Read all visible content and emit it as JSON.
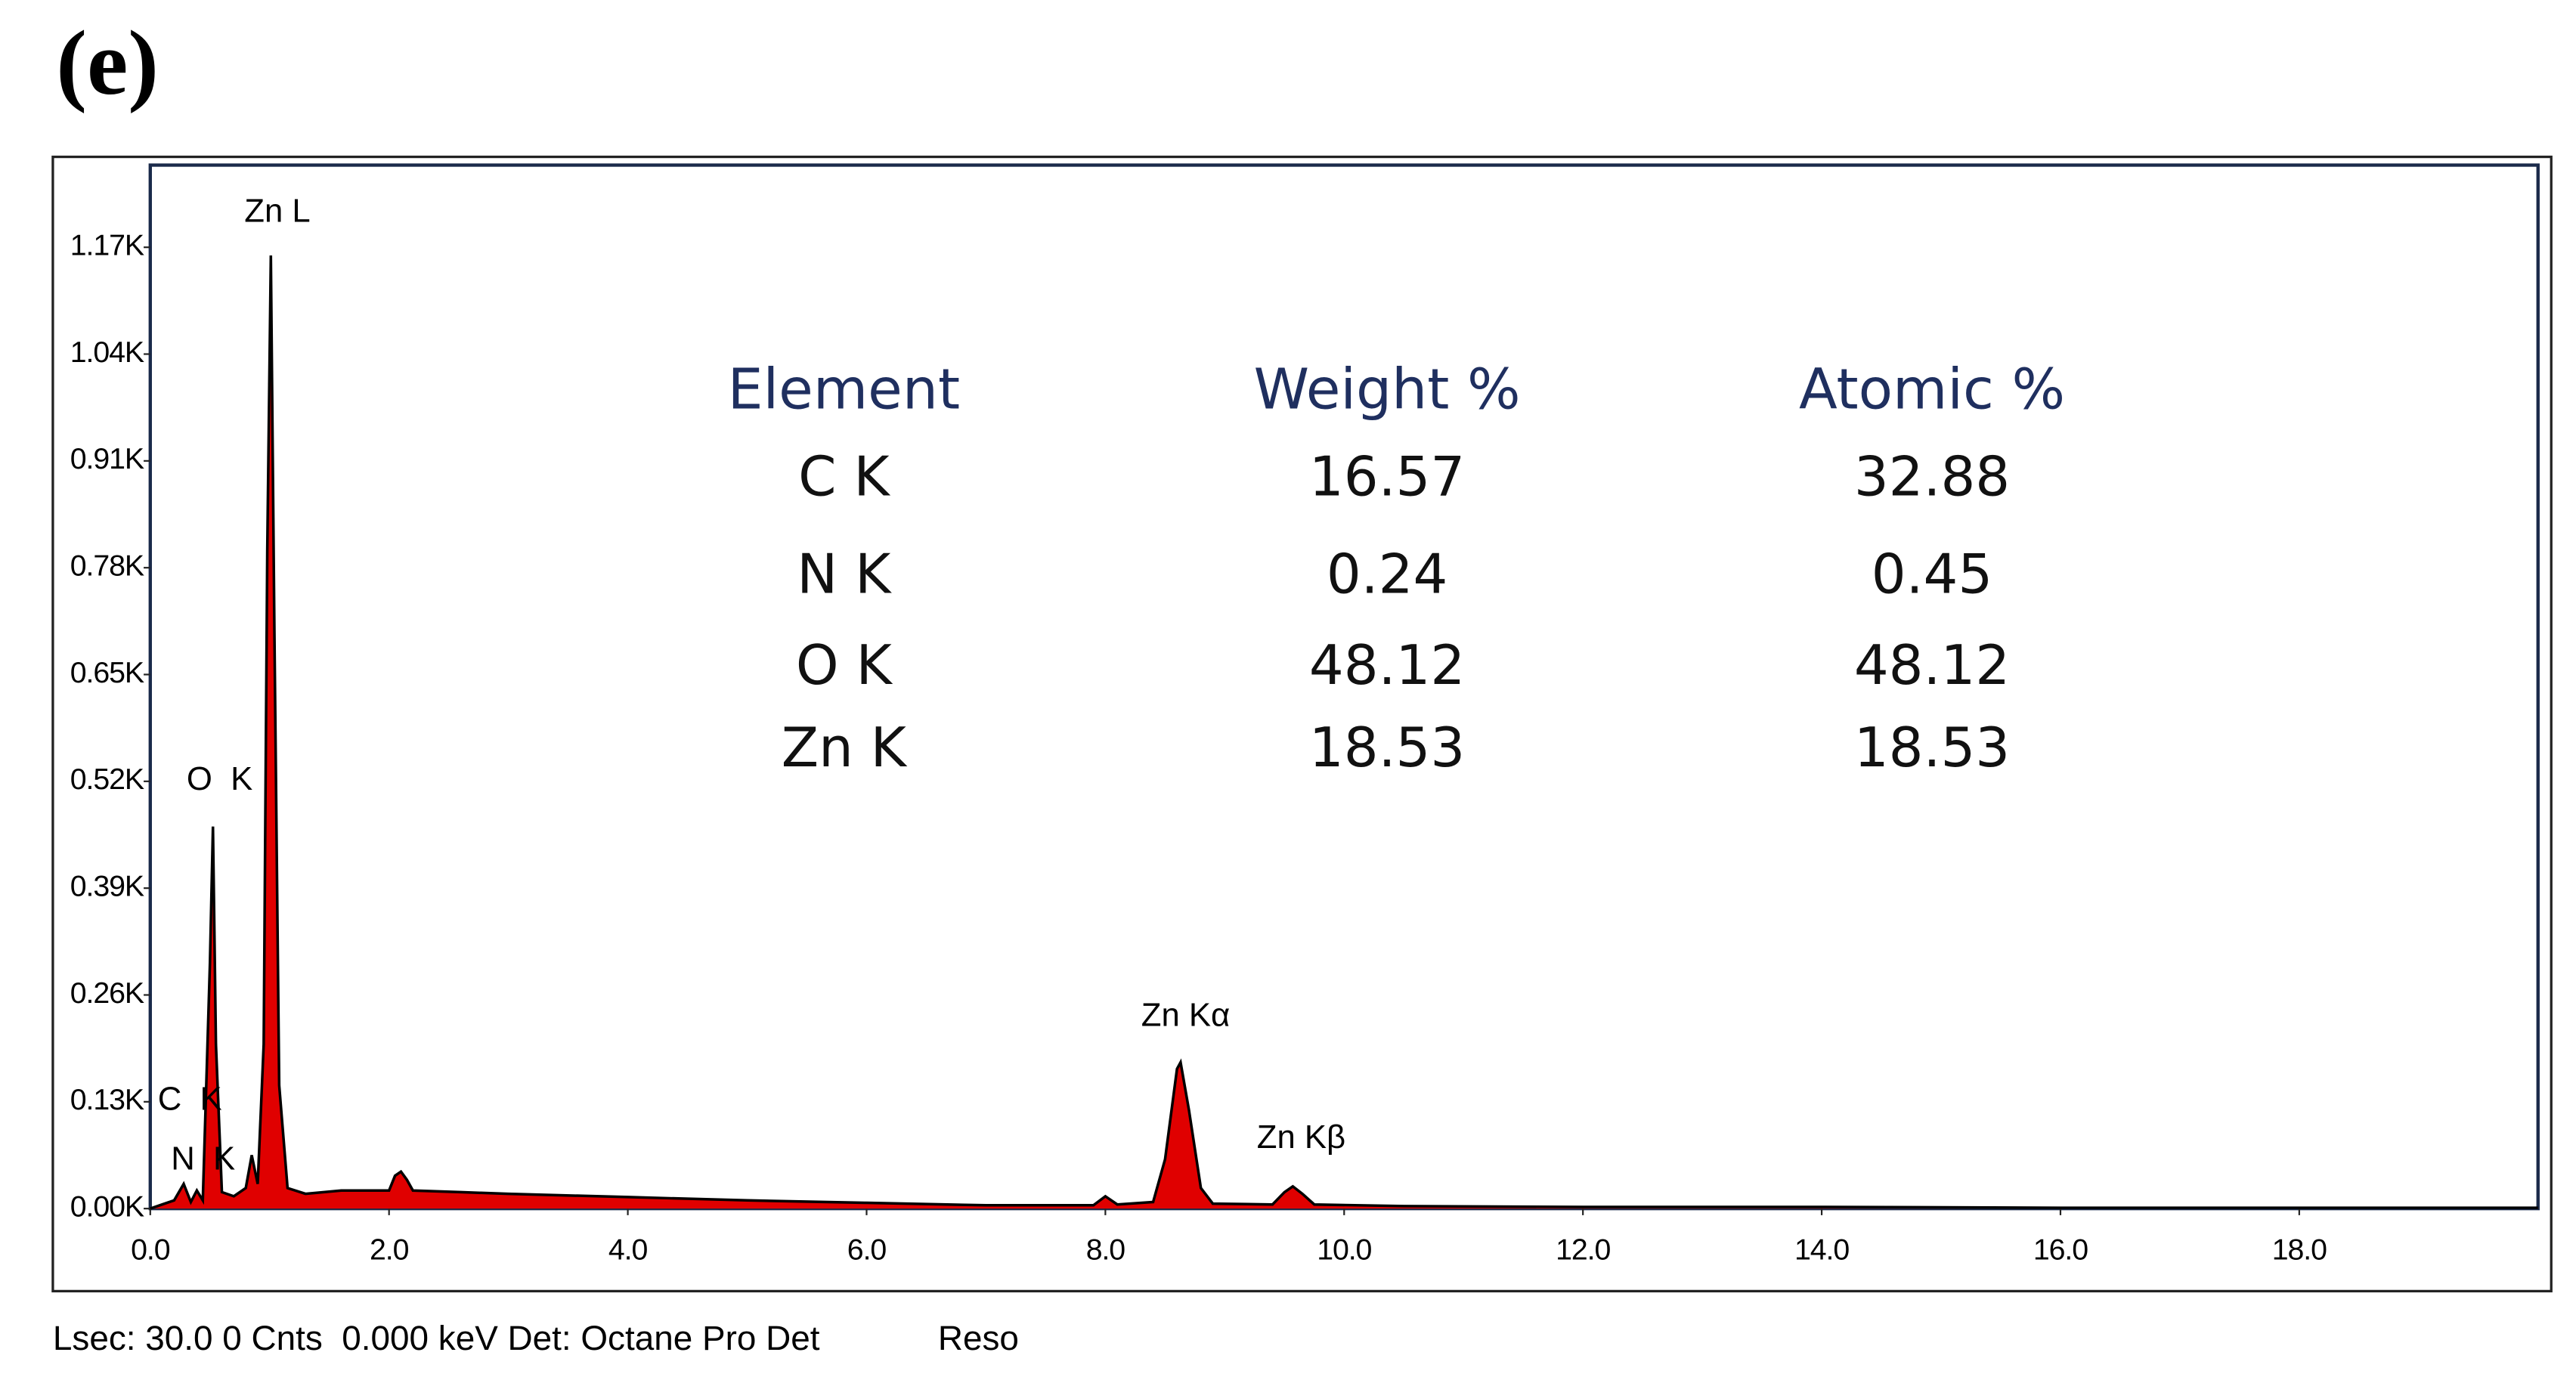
{
  "chart_data": {
    "type": "area",
    "title": "(e)",
    "x": [
      0.0,
      0.1,
      0.2,
      0.28,
      0.34,
      0.39,
      0.44,
      0.5,
      0.525,
      0.55,
      0.6,
      0.7,
      0.8,
      0.85,
      0.9,
      0.95,
      0.98,
      1.01,
      1.04,
      1.08,
      1.15,
      1.3,
      1.6,
      2.0,
      2.05,
      2.1,
      2.15,
      2.2,
      2.6,
      3.0,
      4.0,
      5.0,
      6.0,
      7.0,
      7.9,
      8.0,
      8.1,
      8.4,
      8.5,
      8.6,
      8.63,
      8.7,
      8.8,
      8.9,
      9.4,
      9.5,
      9.57,
      9.65,
      9.75,
      10.5,
      12.0,
      14.0,
      16.0,
      18.0,
      20.0
    ],
    "series": [
      {
        "color": "#e00000",
        "line_color": "#000000",
        "values": [
          0,
          5,
          10,
          30,
          8,
          22,
          10,
          300,
          465,
          200,
          20,
          15,
          25,
          65,
          30,
          200,
          800,
          1160,
          700,
          150,
          25,
          18,
          22,
          22,
          40,
          45,
          35,
          22,
          20,
          18,
          14,
          10,
          7,
          4,
          4,
          15,
          5,
          8,
          60,
          170,
          178,
          120,
          25,
          6,
          5,
          20,
          27,
          18,
          5,
          3,
          2,
          2,
          1,
          1,
          1
        ]
      }
    ],
    "xlim": [
      0,
      20
    ],
    "ylim": [
      0,
      1270
    ],
    "xticks": [
      {
        "value": 0,
        "label": "0.0"
      },
      {
        "value": 2,
        "label": "2.0"
      },
      {
        "value": 4,
        "label": "4.0"
      },
      {
        "value": 6,
        "label": "6.0"
      },
      {
        "value": 8,
        "label": "8.0"
      },
      {
        "value": 10,
        "label": "10.0"
      },
      {
        "value": 12,
        "label": "12.0"
      },
      {
        "value": 14,
        "label": "14.0"
      },
      {
        "value": 16,
        "label": "16.0"
      },
      {
        "value": 18,
        "label": "18.0"
      }
    ],
    "yticks": [
      {
        "value": 0,
        "label": "0.00K"
      },
      {
        "value": 130,
        "label": "0.13K"
      },
      {
        "value": 260,
        "label": "0.26K"
      },
      {
        "value": 390,
        "label": "0.39K"
      },
      {
        "value": 520,
        "label": "0.52K"
      },
      {
        "value": 650,
        "label": "0.65K"
      },
      {
        "value": 780,
        "label": "0.78K"
      },
      {
        "value": 910,
        "label": "0.91K"
      },
      {
        "value": 1040,
        "label": "1.04K"
      },
      {
        "value": 1170,
        "label": "1.17K"
      }
    ],
    "annotations": [
      "Zn L",
      "O  K",
      "C  K",
      "N  K",
      "Zn Kα",
      "Zn Kβ"
    ],
    "table": {
      "headers": [
        "Element",
        "Weight %",
        "Atomic %"
      ],
      "rows": [
        [
          "C K",
          16.57,
          32.88
        ],
        [
          "N K",
          0.24,
          0.45
        ],
        [
          "O K",
          48.12,
          48.12
        ],
        [
          "Zn K",
          18.53,
          18.53
        ]
      ]
    },
    "footer": [
      "Lsec: 30.0 0 Cnts  0.000 keV Det: Octane Pro Det",
      "Reso"
    ]
  }
}
